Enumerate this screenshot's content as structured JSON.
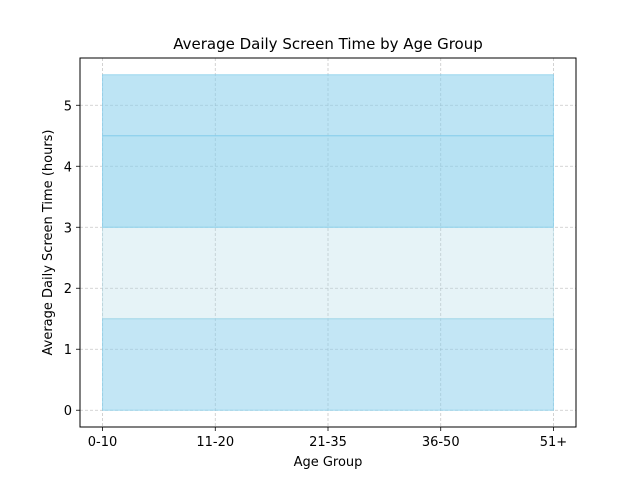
{
  "chart_data": {
    "type": "area",
    "title": "Average Daily Screen Time by Age Group",
    "xlabel": "Age Group",
    "ylabel": "Average Daily Screen Time (hours)",
    "categories": [
      "0-10",
      "11-20",
      "21-35",
      "36-50",
      "51+"
    ],
    "yticks": [
      0,
      1,
      2,
      3,
      4,
      5
    ],
    "ylim": [
      -0.275,
      5.775
    ],
    "grid": true,
    "bands": [
      {
        "lower": [
          0,
          0,
          0,
          0,
          0
        ],
        "upper": [
          1.5,
          1.5,
          1.5,
          1.5,
          1.5
        ],
        "color": "#87CEEB",
        "opacity": 0.5
      },
      {
        "lower": [
          1.5,
          1.5,
          1.5,
          1.5,
          1.5
        ],
        "upper": [
          3.0,
          3.0,
          3.0,
          3.0,
          3.0
        ],
        "color": "#ADD8E6",
        "opacity": 0.3
      },
      {
        "lower": [
          3.0,
          3.0,
          3.0,
          3.0,
          3.0
        ],
        "upper": [
          4.5,
          4.5,
          4.5,
          4.5,
          4.5
        ],
        "color": "#87CEEB",
        "opacity": 0.6
      },
      {
        "lower": [
          4.5,
          4.5,
          4.5,
          4.5,
          4.5
        ],
        "upper": [
          5.5,
          5.5,
          5.5,
          5.5,
          5.5
        ],
        "color": "#87CEEB",
        "opacity": 0.55
      }
    ]
  }
}
